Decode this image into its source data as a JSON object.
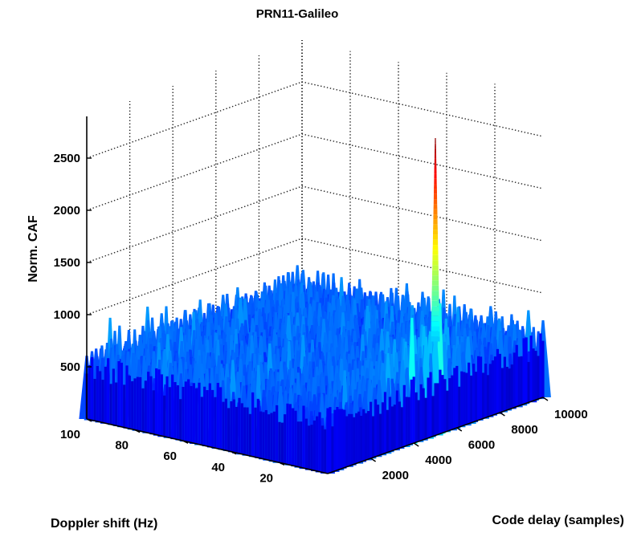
{
  "chart_data": {
    "type": "surface3d",
    "title": "PRN11-Galileo",
    "xlabel": "Doppler shift (Hz)",
    "ylabel": "Code delay (samples)",
    "zlabel": "Norm. CAF",
    "xlim": [
      0,
      100
    ],
    "ylim": [
      0,
      10000
    ],
    "zlim": [
      0,
      2900
    ],
    "x_ticks": [
      20,
      40,
      60,
      80,
      100
    ],
    "y_ticks": [
      2000,
      4000,
      6000,
      8000,
      10000
    ],
    "z_ticks": [
      500,
      1000,
      1500,
      2000,
      2500
    ],
    "grid": true,
    "colormap": "jet",
    "noise_floor_max": 1250,
    "peak": {
      "doppler_hz": 0,
      "code_delay_samples": 5000,
      "value": 2850
    }
  }
}
